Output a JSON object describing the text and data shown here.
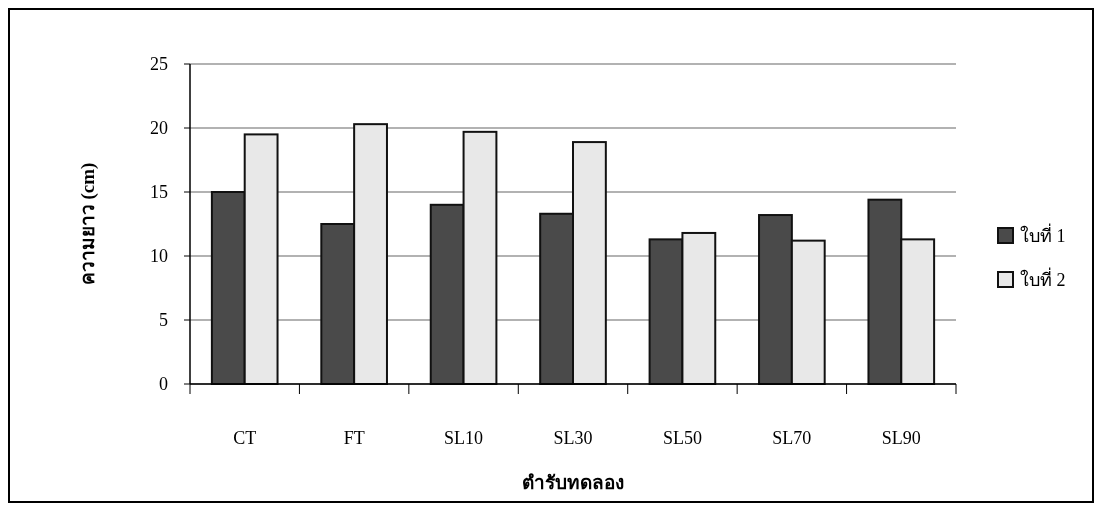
{
  "chart_data": {
    "type": "bar",
    "xlabel": "ตำรับทดลอง",
    "ylabel": "ความยาว (cm)",
    "categories": [
      "CT",
      "FT",
      "SL10",
      "SL30",
      "SL50",
      "SL70",
      "SL90"
    ],
    "series": [
      {
        "name": "ใบที่ 1",
        "color": "#4a4a4a",
        "values": [
          15.0,
          12.5,
          14.0,
          13.3,
          11.3,
          13.2,
          14.4
        ]
      },
      {
        "name": "ใบที่ 2",
        "color": "#e8e8e8",
        "values": [
          19.5,
          20.3,
          19.7,
          18.9,
          11.8,
          11.2,
          11.3
        ]
      }
    ],
    "ylim": [
      0,
      25
    ],
    "yticks": [
      0,
      5,
      10,
      15,
      20,
      25
    ],
    "grid": "y",
    "legend": "right"
  }
}
